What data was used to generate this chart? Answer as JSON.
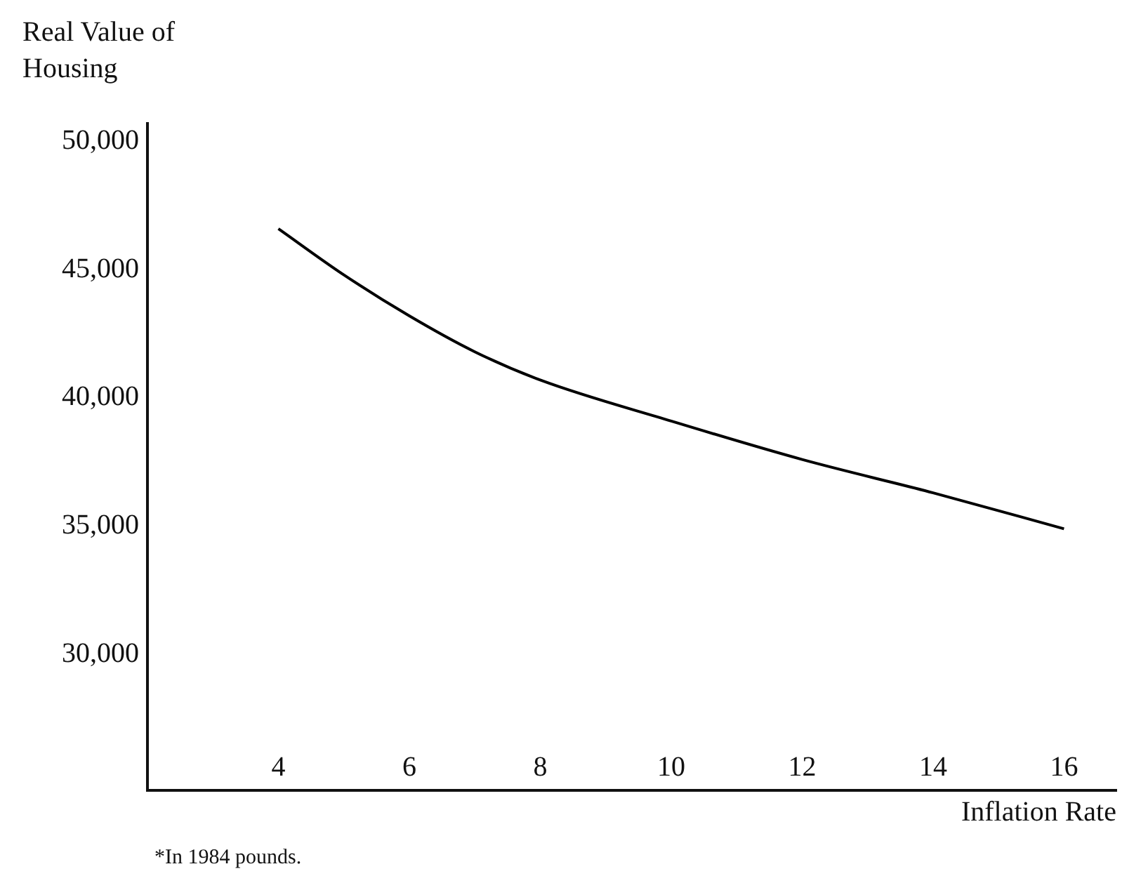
{
  "chart_data": {
    "type": "line",
    "ylabel": "Real Value of Housing",
    "xlabel": "Inflation Rate",
    "annotations": [
      "*In 1984 pounds."
    ],
    "x": [
      4,
      5,
      6,
      7,
      8,
      10,
      12,
      14,
      16
    ],
    "series": [
      {
        "color": "#000000",
        "values": [
          46600,
          44800,
          43200,
          41800,
          40700,
          39100,
          37600,
          36300,
          34900
        ]
      }
    ],
    "xlim": [
      2,
      16.8
    ],
    "xticks": [
      4,
      6,
      8,
      10,
      12,
      14,
      16
    ],
    "ylim": [
      24700,
      50700
    ],
    "yticks": [
      {
        "value": 30000,
        "label": "30,000"
      },
      {
        "value": 35000,
        "label": "35,000"
      },
      {
        "value": 40000,
        "label": "40,000"
      },
      {
        "value": 45000,
        "label": "45,000"
      },
      {
        "value": 50000,
        "label": "50,000"
      }
    ],
    "grid": false,
    "legend": false
  }
}
